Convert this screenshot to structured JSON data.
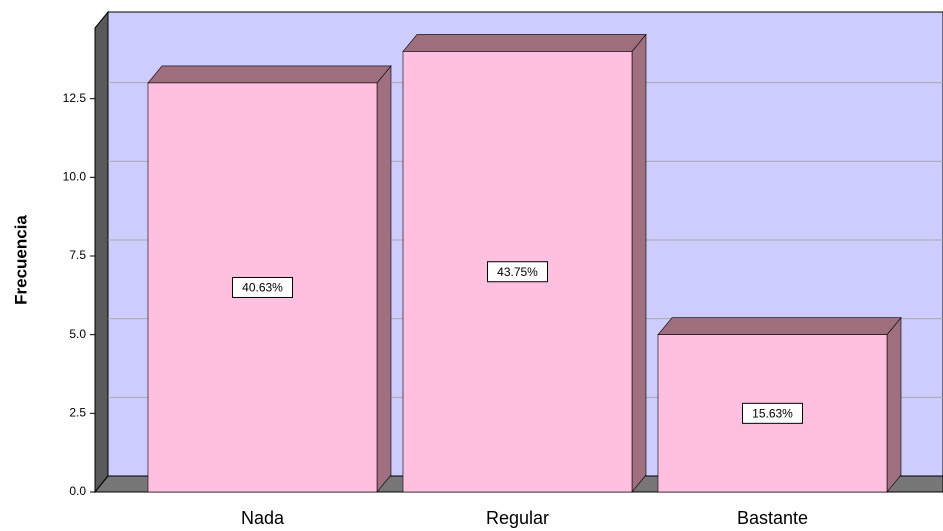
{
  "chart_data": {
    "type": "bar3d",
    "y_label": "Frecuencia",
    "categories": [
      "Nada",
      "Regular",
      "Bastante"
    ],
    "values": [
      13,
      14,
      5
    ],
    "percent_labels": [
      "40.63%",
      "43.75%",
      "15.63%"
    ],
    "color": "#ffc0e0",
    "ylim": [
      0,
      15
    ],
    "yticks": [
      {
        "value": 0,
        "label": "0.0"
      },
      {
        "value": 2.5,
        "label": "2.5"
      },
      {
        "value": 5,
        "label": "5.0"
      },
      {
        "value": 7.5,
        "label": "7.5"
      },
      {
        "value": 10,
        "label": "10.0"
      },
      {
        "value": 12.5,
        "label": "12.5"
      }
    ],
    "grid": true
  }
}
